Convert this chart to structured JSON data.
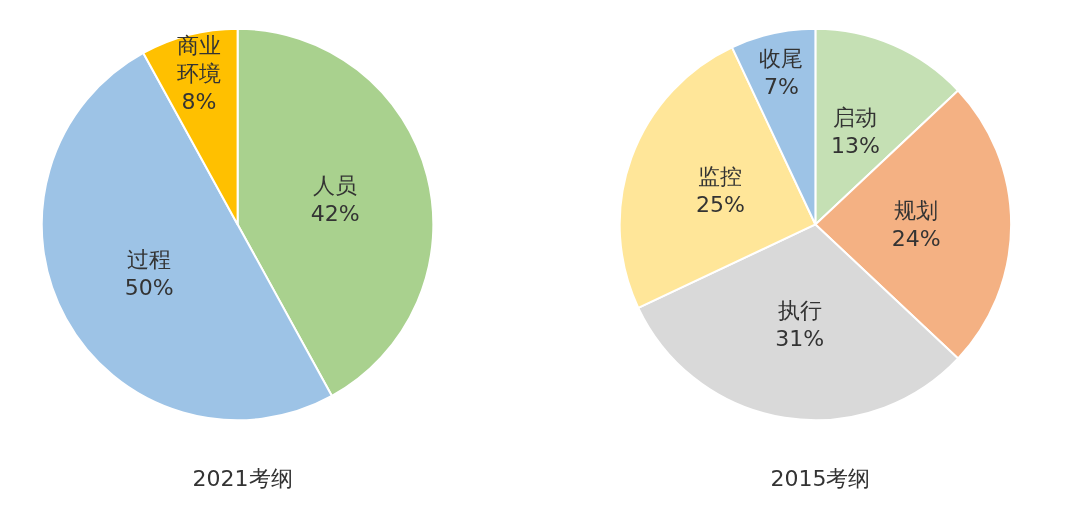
{
  "chart_data": [
    {
      "type": "pie",
      "title": "2021考纲",
      "categories": [
        "人员",
        "过程",
        "商业环境"
      ],
      "values": [
        42,
        50,
        8
      ],
      "value_labels": [
        "42%",
        "50%",
        "8%"
      ],
      "colors": [
        "#a9d18e",
        "#9dc3e6",
        "#ffc000"
      ]
    },
    {
      "type": "pie",
      "title": "2015考纲",
      "categories": [
        "启动",
        "规划",
        "执行",
        "监控",
        "收尾"
      ],
      "values": [
        13,
        24,
        31,
        25,
        7
      ],
      "value_labels": [
        "13%",
        "24%",
        "31%",
        "25%",
        "7%"
      ],
      "colors": [
        "#c5e0b4",
        "#f4b183",
        "#d9d9d9",
        "#ffe699",
        "#9dc3e6"
      ]
    }
  ]
}
